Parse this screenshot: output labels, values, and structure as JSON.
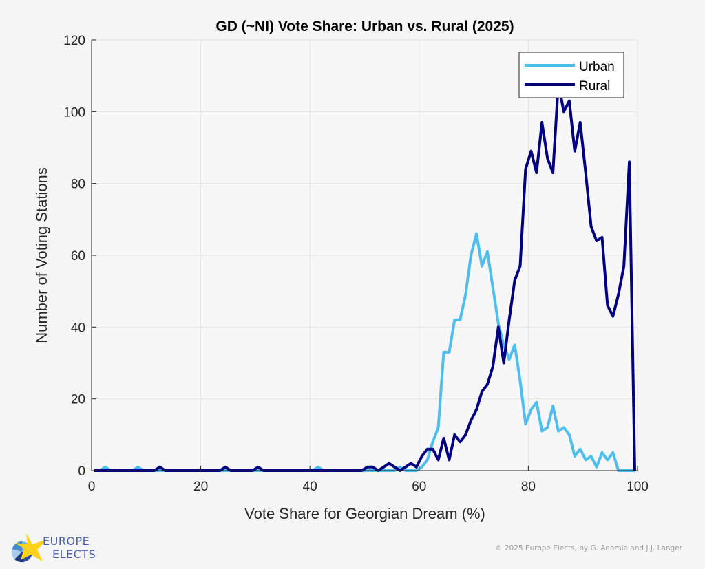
{
  "chart_data": {
    "type": "line",
    "title": "GD (~NI) Vote Share: Urban vs. Rural (2025)",
    "xlabel": "Vote Share for Georgian Dream (%)",
    "ylabel": "Number of Voting Stations",
    "xlim": [
      0,
      100
    ],
    "ylim": [
      0,
      120
    ],
    "xticks": [
      0,
      20,
      40,
      60,
      80,
      100
    ],
    "yticks": [
      0,
      20,
      40,
      60,
      80,
      100,
      120
    ],
    "grid": true,
    "legend_position": "top-right",
    "x": [
      0.5,
      1.5,
      2.5,
      3.5,
      4.5,
      5.5,
      6.5,
      7.5,
      8.5,
      9.5,
      10.5,
      11.5,
      12.5,
      13.5,
      14.5,
      15.5,
      16.5,
      17.5,
      18.5,
      19.5,
      20.5,
      21.5,
      22.5,
      23.5,
      24.5,
      25.5,
      26.5,
      27.5,
      28.5,
      29.5,
      30.5,
      31.5,
      32.5,
      33.5,
      34.5,
      35.5,
      36.5,
      37.5,
      38.5,
      39.5,
      40.5,
      41.5,
      42.5,
      43.5,
      44.5,
      45.5,
      46.5,
      47.5,
      48.5,
      49.5,
      50.5,
      51.5,
      52.5,
      53.5,
      54.5,
      55.5,
      56.5,
      57.5,
      58.5,
      59.5,
      60.5,
      61.5,
      62.5,
      63.5,
      64.5,
      65.5,
      66.5,
      67.5,
      68.5,
      69.5,
      70.5,
      71.5,
      72.5,
      73.5,
      74.5,
      75.5,
      76.5,
      77.5,
      78.5,
      79.5,
      80.5,
      81.5,
      82.5,
      83.5,
      84.5,
      85.5,
      86.5,
      87.5,
      88.5,
      89.5,
      90.5,
      91.5,
      92.5,
      93.5,
      94.5,
      95.5,
      96.5,
      97.5,
      98.5,
      99.5
    ],
    "series": [
      {
        "name": "Urban",
        "color": "#4dbeee",
        "values": [
          0,
          0,
          1,
          0,
          0,
          0,
          0,
          0,
          1,
          0,
          0,
          0,
          0,
          0,
          0,
          0,
          0,
          0,
          0,
          0,
          0,
          0,
          0,
          0,
          0,
          0,
          0,
          0,
          0,
          0,
          0,
          0,
          0,
          0,
          0,
          0,
          0,
          0,
          0,
          0,
          0,
          1,
          0,
          0,
          0,
          0,
          0,
          0,
          0,
          0,
          0,
          0,
          0,
          0,
          0,
          0,
          1,
          0,
          0,
          0,
          1,
          3,
          8,
          12,
          33,
          33,
          42,
          42,
          49,
          60,
          66,
          57,
          61,
          51,
          41,
          35,
          31,
          35,
          25,
          13,
          17,
          19,
          11,
          12,
          18,
          11,
          12,
          10,
          4,
          6,
          3,
          4,
          1,
          5,
          3,
          5,
          0,
          0,
          0,
          0
        ]
      },
      {
        "name": "Rural",
        "color": "#000080",
        "values": [
          0,
          0,
          0,
          0,
          0,
          0,
          0,
          0,
          0,
          0,
          0,
          0,
          1,
          0,
          0,
          0,
          0,
          0,
          0,
          0,
          0,
          0,
          0,
          0,
          1,
          0,
          0,
          0,
          0,
          0,
          1,
          0,
          0,
          0,
          0,
          0,
          0,
          0,
          0,
          0,
          0,
          0,
          0,
          0,
          0,
          0,
          0,
          0,
          0,
          0,
          1,
          1,
          0,
          1,
          2,
          1,
          0,
          1,
          2,
          1,
          4,
          6,
          6,
          3,
          9,
          3,
          10,
          8,
          10,
          14,
          17,
          22,
          24,
          29,
          40,
          30,
          42,
          53,
          57,
          84,
          89,
          83,
          97,
          87,
          83,
          108,
          100,
          103,
          89,
          97,
          83,
          68,
          64,
          65,
          46,
          43,
          49,
          57,
          86,
          0
        ]
      }
    ]
  },
  "footer": {
    "logo_line1": "EUROPE",
    "logo_line2": "ELECTS",
    "credit": "© 2025 Europe Elects, by G. Adamia and J.J. Langer"
  }
}
